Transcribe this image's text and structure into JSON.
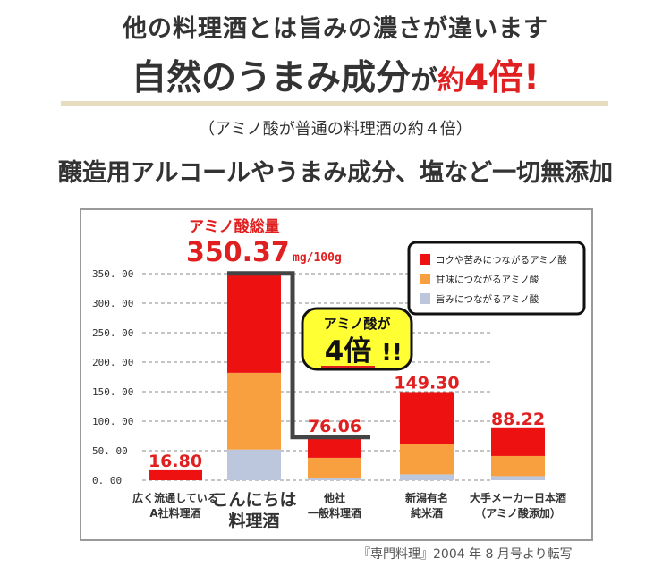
{
  "headline_1": "他の料理酒とは旨みの濃さが違います",
  "headline_2": {
    "part1": "自然のうまみ成分",
    "part2": "が",
    "part3": "約",
    "part4": "4倍",
    "part5": "!"
  },
  "note": "（アミノ酸が普通の料理酒の約４倍）",
  "headline_3": "醸造用アルコールやうまみ成分、塩など一切無添加",
  "source": "『専門料理』2004 年 8 月号より転写",
  "colors": {
    "rich_bitter": "#ee1111",
    "sweet": "#f8a040",
    "umami": "#bcc6dc",
    "red_text": "#e02020",
    "callout_fill": "#ffff33"
  },
  "chart_data": {
    "type": "bar",
    "stacked": true,
    "ylim": [
      0,
      350
    ],
    "yticks": [
      "350. 00",
      "300. 00",
      "250. 00",
      "200. 00",
      "150. 00",
      "100. 00",
      "50. 00",
      "0. 00"
    ],
    "ytick_values": [
      350,
      300,
      250,
      200,
      150,
      100,
      50,
      0
    ],
    "grid": "dashed horizontal",
    "legend_position": "top-right",
    "categories": [
      [
        "広く流通している",
        "A社料理酒"
      ],
      [
        "こんにちは",
        "料理酒"
      ],
      [
        "他社",
        "一般料理酒"
      ],
      [
        "新潟有名",
        "純米酒"
      ],
      [
        "大手メーカー日本酒",
        "（アミノ酸添加）"
      ]
    ],
    "totals": [
      "16.80",
      "350.37",
      "76.06",
      "149.30",
      "88.22"
    ],
    "total_values": [
      16.8,
      350.37,
      76.06,
      149.3,
      88.22
    ],
    "series": [
      {
        "name": "旨みにつながるアミノ酸",
        "color": "#bcc6dc",
        "values": [
          0,
          52,
          4,
          10,
          7
        ]
      },
      {
        "name": "甘味につながるアミノ酸",
        "color": "#f8a040",
        "values": [
          0,
          130,
          34,
          52,
          34
        ]
      },
      {
        "name": "コクや苦みにつながるアミノ酸",
        "color": "#ee1111",
        "values": [
          16.8,
          168.37,
          38.06,
          87.3,
          47.22
        ]
      }
    ],
    "legend_order": [
      2,
      1,
      0
    ],
    "annotations": {
      "total_label": "アミノ酸総量",
      "total_value": "350.37",
      "total_unit": "mg/100g",
      "callout_line1": "アミノ酸が",
      "callout_line2": "4倍",
      "callout_line3": "!!"
    }
  }
}
